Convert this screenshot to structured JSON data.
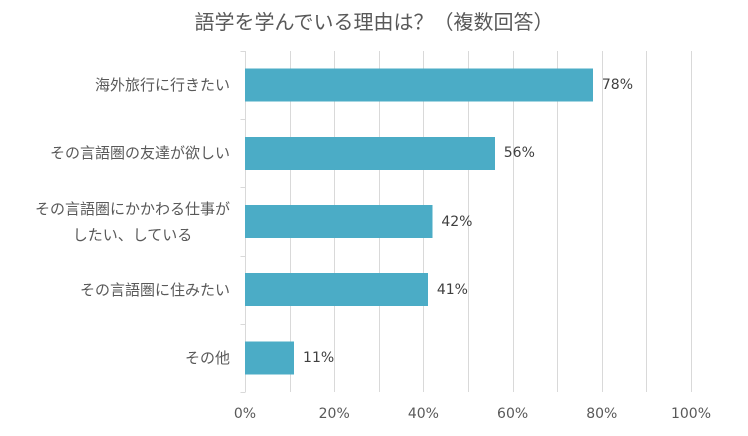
{
  "chart_data": {
    "type": "bar",
    "orientation": "horizontal",
    "title": "語学を学んでいる理由は？（複数回答）",
    "categories": [
      "海外旅行に行きたい",
      "その言語圏の友達が欲しい",
      "その言語圏にかかわる仕事が\nしたい、している",
      "その言語圏に住みたい",
      "その他"
    ],
    "values": [
      78,
      56,
      42,
      41,
      11
    ],
    "data_labels": [
      "78%",
      "56%",
      "42%",
      "41%",
      "11%"
    ],
    "xlim": [
      0,
      100
    ],
    "x_ticks": [
      0,
      20,
      40,
      60,
      80,
      100
    ],
    "x_tick_labels": [
      "0%",
      "20%",
      "40%",
      "60%",
      "80%",
      "100%"
    ],
    "grid": true,
    "grid_interval": 10,
    "legend": "none",
    "bar_color": "#4BACC6"
  }
}
